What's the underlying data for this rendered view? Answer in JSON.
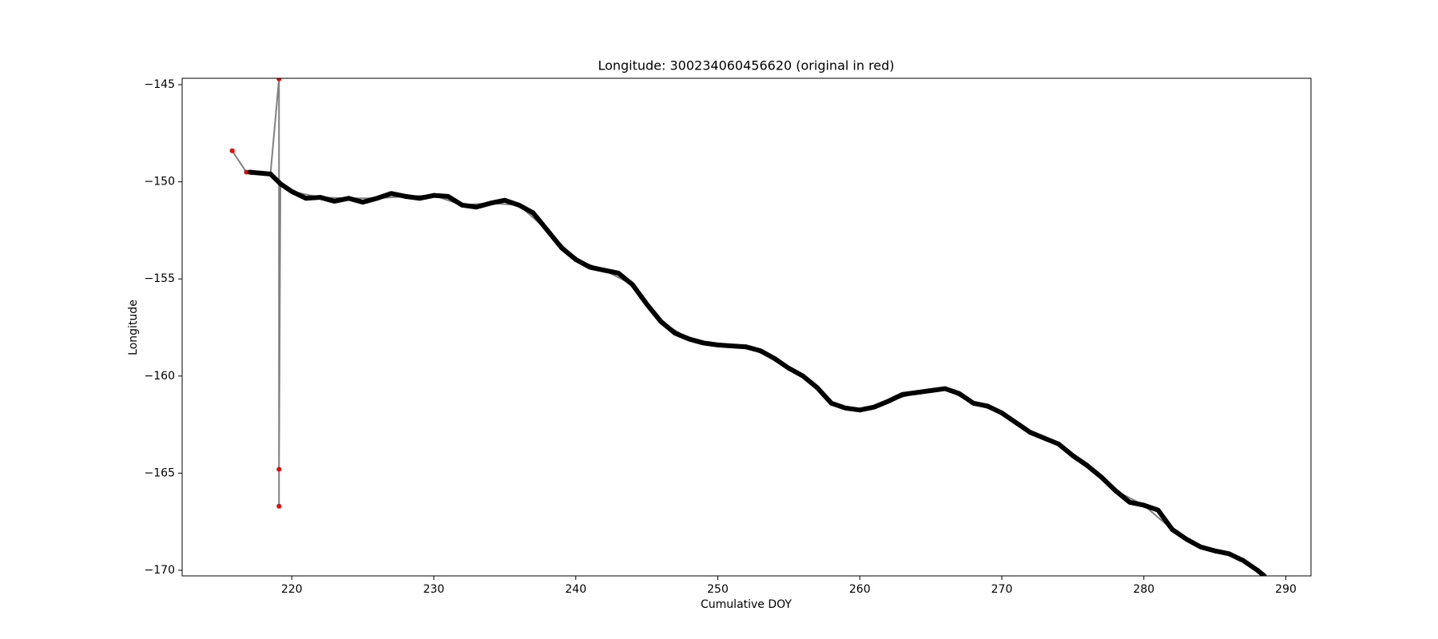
{
  "chart_data": {
    "type": "line",
    "title": "Longitude: 300234060456620 (original in red)",
    "x_label": "Cumulative DOY",
    "y_label": "Longitude",
    "xlim": [
      212.28,
      291.77
    ],
    "ylim": [
      -170.29,
      -144.67
    ],
    "xticks": [
      220,
      230,
      240,
      250,
      260,
      270,
      280,
      290
    ],
    "yticks": [
      {
        "value": -145,
        "label": "−145"
      },
      {
        "value": -150,
        "label": "−150"
      },
      {
        "value": -155,
        "label": "−155"
      },
      {
        "value": -160,
        "label": "−160"
      },
      {
        "value": -165,
        "label": "−165"
      },
      {
        "value": -170,
        "label": "−170"
      }
    ],
    "series": [
      {
        "color": "#ff0000",
        "line_color": "#808080",
        "line_width": 2,
        "marker_radius": 3,
        "x": [
          215.8,
          216.8,
          217,
          218.5,
          219.1,
          219.1,
          219.1,
          219.2,
          220,
          222,
          224,
          226,
          228,
          230,
          232,
          234,
          236,
          238,
          240,
          242,
          244,
          246,
          248,
          250,
          252,
          254,
          256,
          258,
          260,
          262,
          264,
          266,
          268,
          270,
          272,
          274,
          276,
          278,
          280,
          282,
          284,
          286,
          288,
          288.5
        ],
        "values": [
          -148.4,
          -149.5,
          -149.5,
          -149.6,
          -144.7,
          -166.7,
          -164.8,
          -150.1,
          -150.5,
          -150.8,
          -150.85,
          -150.85,
          -150.75,
          -150.7,
          -151.2,
          -151.1,
          -151.2,
          -152.5,
          -154.0,
          -154.55,
          -155.3,
          -157.2,
          -158.1,
          -158.4,
          -158.5,
          -159.1,
          -160.0,
          -161.4,
          -161.75,
          -161.3,
          -160.85,
          -160.65,
          -161.4,
          -161.9,
          -162.9,
          -163.5,
          -164.6,
          -165.9,
          -166.65,
          -167.9,
          -168.8,
          -169.15,
          -170.0,
          -170.3
        ]
      },
      {
        "color": "#000000",
        "line_color": "#000000",
        "line_width": 6,
        "marker_radius": 2.5,
        "x": [
          217,
          218.5,
          219.2,
          220,
          221,
          222,
          223,
          224,
          225,
          226,
          227,
          228,
          229,
          230,
          231,
          232,
          233,
          234,
          235,
          236,
          237,
          238,
          239,
          240,
          241,
          242,
          243,
          244,
          245,
          246,
          247,
          248,
          249,
          250,
          251,
          252,
          253,
          254,
          255,
          256,
          257,
          258,
          259,
          260,
          261,
          262,
          263,
          264,
          265,
          266,
          267,
          268,
          269,
          270,
          271,
          272,
          273,
          274,
          275,
          276,
          277,
          278,
          279,
          280,
          281,
          282,
          283,
          284,
          285,
          286,
          287,
          288,
          288.5
        ],
        "values": [
          -149.5,
          -149.6,
          -150.1,
          -150.5,
          -150.85,
          -150.8,
          -151.0,
          -150.85,
          -151.05,
          -150.85,
          -150.6,
          -150.75,
          -150.85,
          -150.7,
          -150.75,
          -151.2,
          -151.3,
          -151.1,
          -150.95,
          -151.2,
          -151.6,
          -152.5,
          -153.4,
          -154.0,
          -154.4,
          -154.55,
          -154.7,
          -155.3,
          -156.3,
          -157.2,
          -157.8,
          -158.1,
          -158.3,
          -158.4,
          -158.45,
          -158.5,
          -158.7,
          -159.1,
          -159.6,
          -160.0,
          -160.6,
          -161.4,
          -161.65,
          -161.75,
          -161.6,
          -161.3,
          -160.95,
          -160.85,
          -160.75,
          -160.65,
          -160.9,
          -161.4,
          -161.55,
          -161.9,
          -162.4,
          -162.9,
          -163.2,
          -163.5,
          -164.1,
          -164.6,
          -165.2,
          -165.9,
          -166.5,
          -166.65,
          -166.9,
          -167.9,
          -168.4,
          -168.8,
          -169.0,
          -169.15,
          -169.5,
          -170.0,
          -170.3
        ]
      }
    ]
  }
}
